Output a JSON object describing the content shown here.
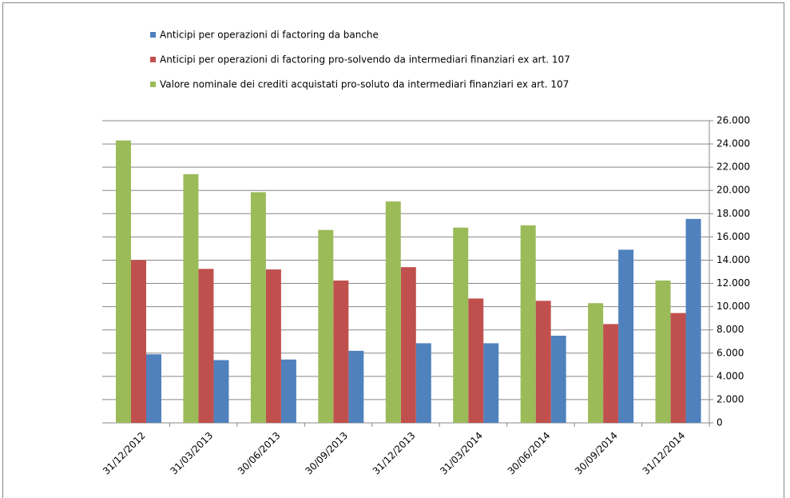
{
  "chart_data": {
    "type": "bar",
    "categories": [
      "31/12/2012",
      "31/03/2013",
      "30/06/2013",
      "30/09/2013",
      "31/12/2013",
      "31/03/2014",
      "30/06/2014",
      "30/09/2014",
      "31/12/2014"
    ],
    "series": [
      {
        "name": "Anticipi per operazioni di factoring da banche",
        "color": "#4f81bd",
        "values": [
          5900,
          5400,
          5450,
          6200,
          6850,
          6850,
          7500,
          14900,
          17550
        ]
      },
      {
        "name": "Anticipi per operazioni di factoring pro-solvendo da intermediari finanziari ex art. 107",
        "color": "#c0504d",
        "values": [
          14000,
          13250,
          13200,
          12250,
          13400,
          10700,
          10500,
          8500,
          9450
        ]
      },
      {
        "name": "Valore nominale dei crediti acquistati pro-soluto da intermediari finanziari ex art. 107",
        "color": "#9bbb59",
        "values": [
          24300,
          21400,
          19850,
          16600,
          19050,
          16800,
          17000,
          10300,
          12250
        ]
      }
    ],
    "ylim": [
      0,
      26000
    ],
    "yticks": [
      0,
      {
        "value": 2000,
        "label": "2.000"
      },
      {
        "value": 4000,
        "label": "4.000"
      },
      {
        "value": 6000,
        "label": "6.000"
      },
      {
        "value": 8000,
        "label": "8.000"
      },
      {
        "value": 10000,
        "label": "10.000"
      },
      {
        "value": 12000,
        "label": "12.000"
      },
      {
        "value": 14000,
        "label": "14.000"
      },
      {
        "value": 16000,
        "label": "16.000"
      },
      {
        "value": 18000,
        "label": "18.000"
      },
      {
        "value": 20000,
        "label": "20.000"
      },
      {
        "value": 22000,
        "label": "22.000"
      },
      {
        "value": 24000,
        "label": "24.000"
      },
      {
        "value": 26000,
        "label": "26.000"
      }
    ],
    "grid": true,
    "legend": "top"
  }
}
